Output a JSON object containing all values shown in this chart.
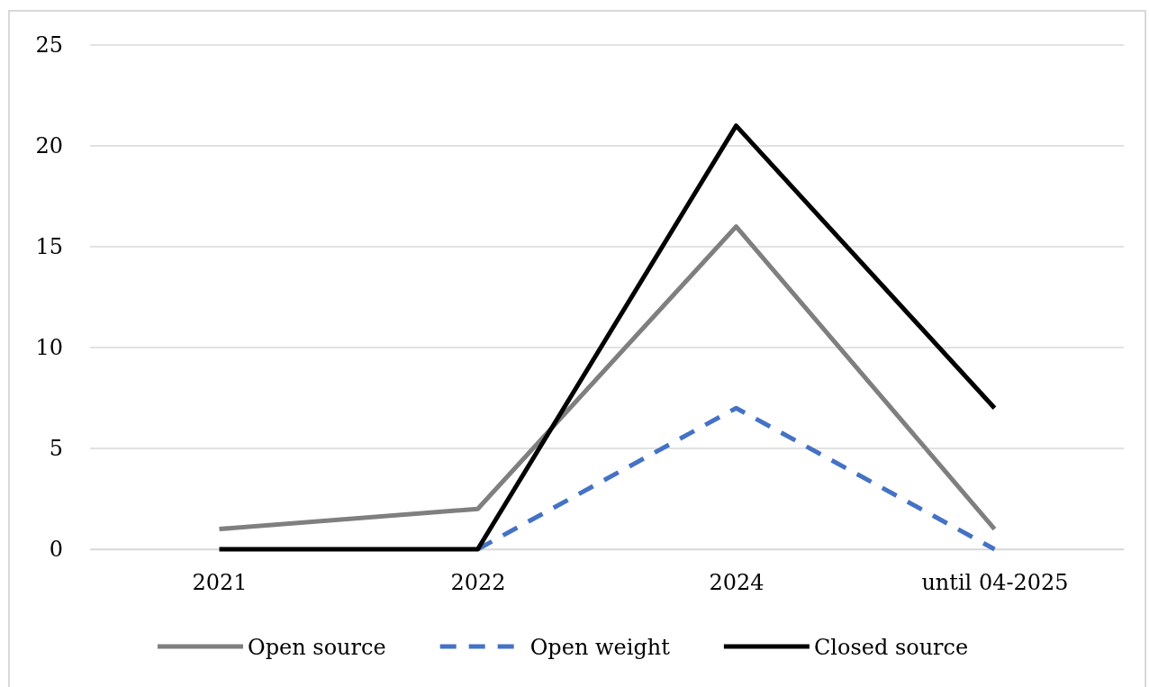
{
  "chart_data": {
    "type": "line",
    "categories": [
      "2021",
      "2022",
      "2024",
      "until 04-2025"
    ],
    "series": [
      {
        "name": "Open source",
        "color": "#7f7f7f",
        "values": [
          1,
          2,
          16,
          1
        ]
      },
      {
        "name": "Open weight",
        "color": "#4472c4",
        "values": [
          null,
          0,
          7,
          0
        ],
        "line_style": "dashed"
      },
      {
        "name": "Closed source",
        "color": "#000000",
        "values": [
          0,
          0,
          21,
          7
        ]
      }
    ],
    "ylim": [
      0,
      25
    ],
    "yticks": [
      0,
      5,
      10,
      15,
      20,
      25
    ],
    "grid": "y",
    "legend": "bottom"
  }
}
